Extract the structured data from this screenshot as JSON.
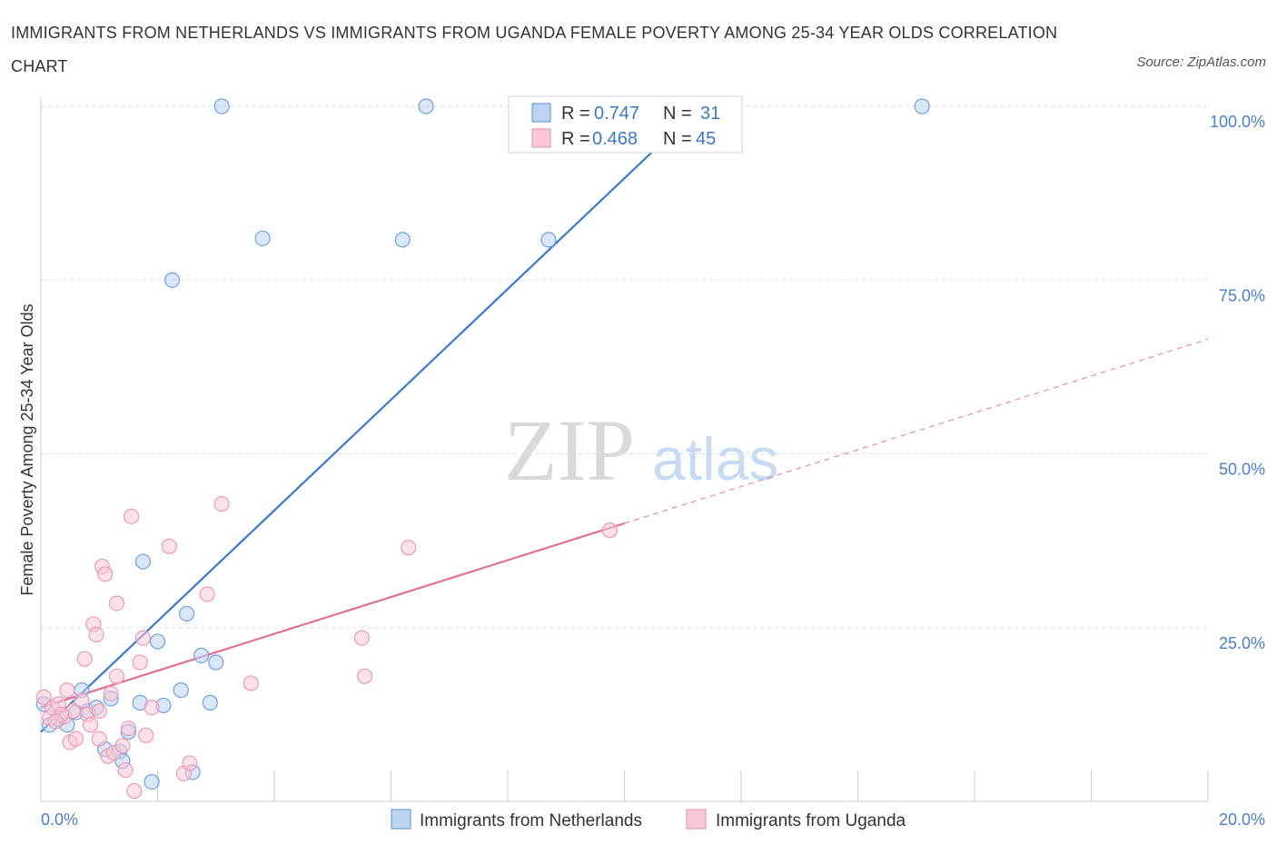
{
  "title": "IMMIGRANTS FROM NETHERLANDS VS IMMIGRANTS FROM UGANDA FEMALE POVERTY AMONG 25-34 YEAR OLDS CORRELATION CHART",
  "source": "Source: ZipAtlas.com",
  "watermark": {
    "zip": "ZIP",
    "atlas": "atlas"
  },
  "chart_data": {
    "type": "scatter",
    "title": "IMMIGRANTS FROM NETHERLANDS VS IMMIGRANTS FROM UGANDA FEMALE POVERTY AMONG 25-34 YEAR OLDS CORRELATION CHART",
    "xlabel": "",
    "ylabel": "Female Poverty Among 25-34 Year Olds",
    "xlim": [
      0,
      20
    ],
    "ylim": [
      0,
      100
    ],
    "x_tick_labels": [
      "0.0%",
      "20.0%"
    ],
    "y_ticks": [
      25,
      50,
      75,
      100
    ],
    "y_tick_labels": [
      "25.0%",
      "50.0%",
      "75.0%",
      "100.0%"
    ],
    "grid": true,
    "legend_position": "top-center",
    "series": [
      {
        "name": "Immigrants from Netherlands",
        "color": "#6fa0df",
        "fill": "#bcd3f1",
        "line_color": "#3b78d0",
        "R": "0.747",
        "N": "31",
        "trend": {
          "x0": 0.0,
          "y0": 10.0,
          "x1": 11.3,
          "y1": 100.0,
          "dashed_to_x": null
        },
        "points": [
          [
            0.05,
            14.0
          ],
          [
            0.15,
            11.0
          ],
          [
            0.3,
            11.8
          ],
          [
            0.45,
            11.0
          ],
          [
            0.6,
            12.8
          ],
          [
            0.7,
            16.0
          ],
          [
            0.8,
            13.0
          ],
          [
            0.95,
            13.5
          ],
          [
            1.1,
            7.5
          ],
          [
            1.2,
            14.8
          ],
          [
            1.35,
            7.2
          ],
          [
            1.4,
            5.8
          ],
          [
            1.5,
            10.0
          ],
          [
            1.7,
            14.2
          ],
          [
            1.75,
            34.5
          ],
          [
            1.9,
            2.8
          ],
          [
            2.0,
            23.0
          ],
          [
            2.1,
            13.8
          ],
          [
            2.25,
            75.0
          ],
          [
            2.4,
            16.0
          ],
          [
            2.5,
            27.0
          ],
          [
            2.6,
            4.2
          ],
          [
            2.75,
            21.0
          ],
          [
            2.9,
            14.2
          ],
          [
            3.0,
            20.0
          ],
          [
            3.1,
            100.0
          ],
          [
            3.8,
            81.0
          ],
          [
            6.2,
            80.8
          ],
          [
            6.6,
            100.0
          ],
          [
            8.7,
            80.8
          ],
          [
            15.1,
            100.0
          ]
        ]
      },
      {
        "name": "Immigrants from Uganda",
        "color": "#ec9ab4",
        "fill": "#f7c9d7",
        "line_color": "#e06f98",
        "R": "0.468",
        "N": "45",
        "trend": {
          "x0": 0.0,
          "y0": 13.5,
          "x1": 10.0,
          "y1": 40.0,
          "dashed_to_x": 20.0
        },
        "points": [
          [
            0.05,
            15.0
          ],
          [
            0.15,
            12.0
          ],
          [
            0.2,
            13.5
          ],
          [
            0.3,
            14.0
          ],
          [
            0.4,
            12.2
          ],
          [
            0.45,
            16.0
          ],
          [
            0.5,
            8.5
          ],
          [
            0.55,
            13.0
          ],
          [
            0.6,
            9.0
          ],
          [
            0.7,
            14.5
          ],
          [
            0.75,
            20.5
          ],
          [
            0.8,
            12.5
          ],
          [
            0.85,
            11.0
          ],
          [
            0.9,
            25.5
          ],
          [
            0.95,
            24.0
          ],
          [
            1.0,
            13.0
          ],
          [
            1.0,
            9.0
          ],
          [
            1.05,
            33.8
          ],
          [
            1.1,
            32.7
          ],
          [
            1.15,
            6.5
          ],
          [
            1.2,
            15.5
          ],
          [
            1.25,
            7.0
          ],
          [
            1.3,
            28.5
          ],
          [
            1.3,
            18.0
          ],
          [
            1.4,
            8.0
          ],
          [
            1.45,
            4.5
          ],
          [
            1.5,
            10.5
          ],
          [
            1.55,
            41.0
          ],
          [
            1.6,
            1.5
          ],
          [
            1.7,
            20.0
          ],
          [
            1.75,
            23.5
          ],
          [
            1.8,
            9.5
          ],
          [
            1.9,
            13.5
          ],
          [
            2.2,
            36.7
          ],
          [
            2.45,
            4.0
          ],
          [
            2.55,
            5.5
          ],
          [
            2.85,
            29.8
          ],
          [
            3.1,
            42.8
          ],
          [
            3.6,
            17.0
          ],
          [
            5.5,
            23.5
          ],
          [
            5.55,
            18.0
          ],
          [
            6.3,
            36.5
          ],
          [
            9.75,
            39.0
          ],
          [
            0.35,
            12.5
          ],
          [
            0.25,
            11.5
          ]
        ]
      }
    ]
  }
}
